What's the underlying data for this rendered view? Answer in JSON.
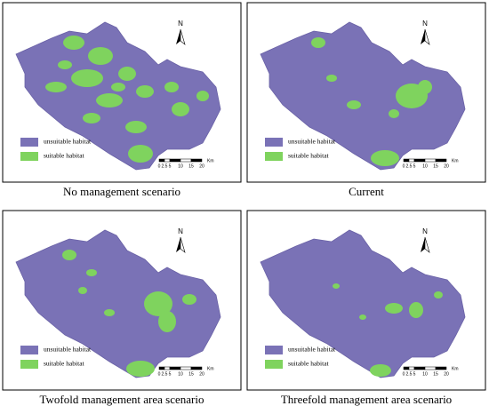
{
  "panels": [
    {
      "caption": "No management scenario",
      "legend": [
        "unsuitable habitat",
        "suitable habitat"
      ],
      "north": "N",
      "scale_labels": [
        "0",
        "2.5",
        "5",
        "10",
        "15",
        "20"
      ],
      "scale_unit": "Km"
    },
    {
      "caption": "Current",
      "legend": [
        "unsuitable habitat",
        "suitable habitat"
      ],
      "north": "N",
      "scale_labels": [
        "0",
        "2.5",
        "5",
        "10",
        "15",
        "20"
      ],
      "scale_unit": "Km"
    },
    {
      "caption": "Twofold management area scenario",
      "legend": [
        "unsuitable habitat",
        "suitable habitat"
      ],
      "north": "N",
      "scale_labels": [
        "0",
        "2.5",
        "5",
        "10",
        "15",
        "20"
      ],
      "scale_unit": "Km"
    },
    {
      "caption": "Threefold management area scenario",
      "legend": [
        "unsuitable habitat",
        "suitable habitat"
      ],
      "north": "N",
      "scale_labels": [
        "0",
        "2.5",
        "5",
        "10",
        "15",
        "20"
      ],
      "scale_unit": "Km"
    }
  ]
}
